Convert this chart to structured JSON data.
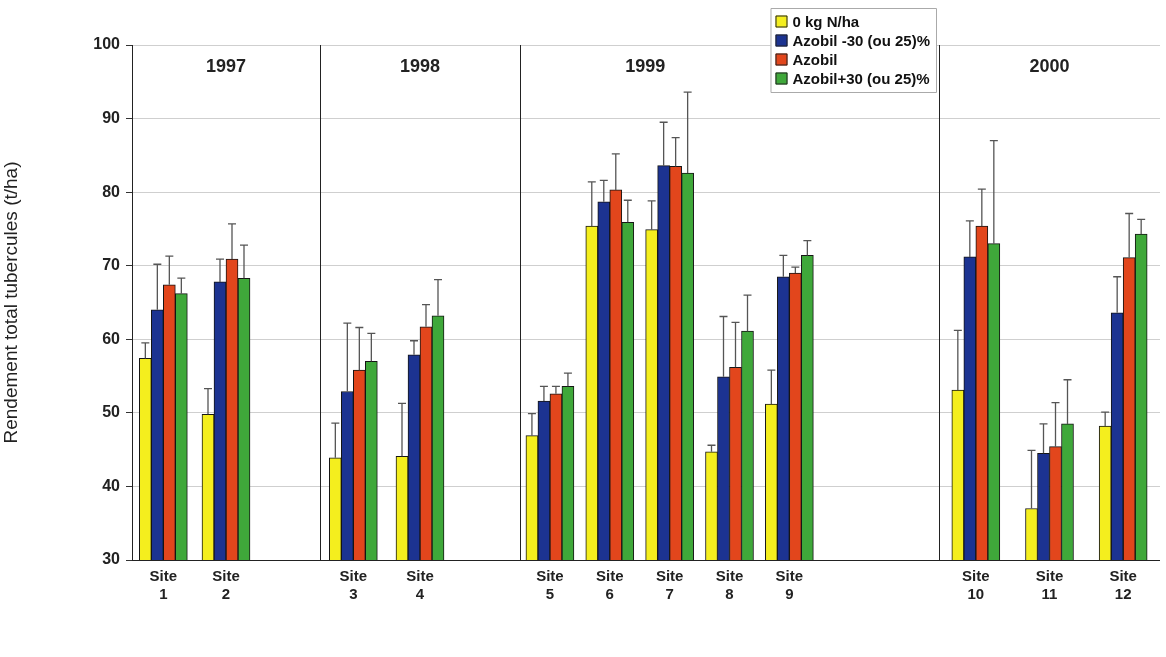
{
  "chart_data": [
    {
      "type": "bar",
      "title": "1997",
      "ylabel": "Rendement total tubercules (t/ha)",
      "categories": [
        "Site 1",
        "Site 2",
        null
      ],
      "series": [
        {
          "color": "#f4ee1e",
          "values": [
            57.4,
            49.8,
            null
          ],
          "errors": [
            [
              57.4,
              59.5
            ],
            [
              49.8,
              53.3
            ],
            null
          ]
        },
        {
          "color": "#1c3391",
          "values": [
            64.0,
            67.8,
            null
          ],
          "errors": [
            [
              64.0,
              70.2
            ],
            [
              67.8,
              70.9
            ],
            null
          ]
        },
        {
          "color": "#e2461c",
          "values": [
            67.4,
            70.9,
            null
          ],
          "errors": [
            [
              67.4,
              71.3
            ],
            [
              70.9,
              75.7
            ],
            null
          ]
        },
        {
          "color": "#3fa83a",
          "values": [
            66.2,
            68.3,
            null
          ],
          "errors": [
            [
              66.2,
              68.3
            ],
            [
              68.3,
              72.8
            ],
            null
          ]
        }
      ],
      "ylim": [
        30,
        100
      ],
      "yticks": [
        30,
        40,
        50,
        60,
        70,
        80,
        90,
        100
      ],
      "grid": "y"
    },
    {
      "type": "bar",
      "title": "1998",
      "categories": [
        "Site 3",
        "Site 4",
        null
      ],
      "series": [
        {
          "color": "#f4ee1e",
          "values": [
            43.9,
            44.1,
            null
          ],
          "errors": [
            [
              43.9,
              48.6
            ],
            [
              44.1,
              51.3
            ],
            null
          ]
        },
        {
          "color": "#1c3391",
          "values": [
            52.9,
            57.9,
            null
          ],
          "errors": [
            [
              52.9,
              62.2
            ],
            [
              57.9,
              59.8
            ],
            null
          ]
        },
        {
          "color": "#e2461c",
          "values": [
            55.8,
            61.7,
            null
          ],
          "errors": [
            [
              55.8,
              61.6
            ],
            [
              61.7,
              64.7
            ],
            null
          ]
        },
        {
          "color": "#3fa83a",
          "values": [
            57.0,
            63.2,
            null
          ],
          "errors": [
            [
              57.0,
              60.8
            ],
            [
              63.2,
              68.1
            ],
            null
          ]
        }
      ],
      "ylim": [
        30,
        100
      ],
      "yticks": [
        30,
        40,
        50,
        60,
        70,
        80,
        90,
        100
      ],
      "grid": "y",
      "tick_labels": "x"
    },
    {
      "type": "bar",
      "title": "1999",
      "categories": [
        "Site 5",
        "Site 6",
        "Site 7",
        "Site 8",
        "Site 9",
        null,
        null
      ],
      "series": [
        {
          "name": "0 kg N/ha",
          "color": "#f4ee1e",
          "values": [
            46.9,
            75.4,
            74.9,
            44.7,
            51.2,
            null,
            null
          ],
          "errors": [
            [
              46.9,
              49.9
            ],
            [
              75.4,
              81.4
            ],
            [
              74.9,
              78.8
            ],
            [
              44.7,
              45.6
            ],
            [
              51.2,
              55.8
            ],
            null,
            null
          ]
        },
        {
          "name": "Azobil -30 (ou 25)%",
          "color": "#1c3391",
          "values": [
            51.6,
            78.7,
            83.6,
            54.9,
            68.5,
            null,
            null
          ],
          "errors": [
            [
              51.6,
              53.6
            ],
            [
              78.7,
              81.6
            ],
            [
              83.6,
              89.5
            ],
            [
              54.9,
              63.1
            ],
            [
              68.5,
              71.4
            ],
            null,
            null
          ]
        },
        {
          "name": "Azobil",
          "color": "#e2461c",
          "values": [
            52.6,
            80.3,
            83.5,
            56.2,
            69.0,
            null,
            null
          ],
          "errors": [
            [
              52.6,
              53.6
            ],
            [
              80.3,
              85.2
            ],
            [
              83.5,
              87.4
            ],
            [
              56.2,
              62.3
            ],
            [
              69.0,
              69.8
            ],
            null,
            null
          ]
        },
        {
          "name": "Azobil+30 (ou 25)%",
          "color": "#3fa83a",
          "values": [
            53.6,
            75.9,
            82.6,
            61.1,
            71.4,
            null,
            null
          ],
          "errors": [
            [
              53.6,
              55.4
            ],
            [
              75.9,
              78.9
            ],
            [
              82.6,
              93.6
            ],
            [
              61.1,
              66.0
            ],
            [
              71.4,
              73.4
            ],
            null,
            null
          ]
        }
      ],
      "ylim": [
        30,
        100
      ],
      "yticks": [
        30,
        40,
        50,
        60,
        70,
        80,
        90,
        100
      ],
      "grid": "y",
      "tick_labels": "x",
      "legend": "top right"
    },
    {
      "type": "bar",
      "title": "2000",
      "categories": [
        "Site 10",
        "Site 11",
        "Site 12"
      ],
      "series": [
        {
          "color": "#f4ee1e",
          "values": [
            53.1,
            37.0,
            48.2
          ],
          "errors": [
            [
              53.1,
              61.2
            ],
            [
              37.0,
              44.9
            ],
            [
              48.2,
              50.1
            ]
          ]
        },
        {
          "color": "#1c3391",
          "values": [
            71.2,
            44.5,
            63.6
          ],
          "errors": [
            [
              71.2,
              76.1
            ],
            [
              44.5,
              48.5
            ],
            [
              63.6,
              68.5
            ]
          ]
        },
        {
          "color": "#e2461c",
          "values": [
            75.4,
            45.4,
            71.1
          ],
          "errors": [
            [
              75.4,
              80.4
            ],
            [
              45.4,
              51.4
            ],
            [
              71.1,
              77.1
            ]
          ]
        },
        {
          "color": "#3fa83a",
          "values": [
            73.0,
            48.5,
            74.3
          ],
          "errors": [
            [
              73.0,
              87.0
            ],
            [
              48.5,
              54.5
            ],
            [
              74.3,
              76.3
            ]
          ]
        }
      ],
      "ylim": [
        30,
        100
      ],
      "yticks": [
        30,
        40,
        50,
        60,
        70,
        80,
        90,
        100
      ],
      "grid": "y",
      "tick_labels": "x"
    }
  ]
}
